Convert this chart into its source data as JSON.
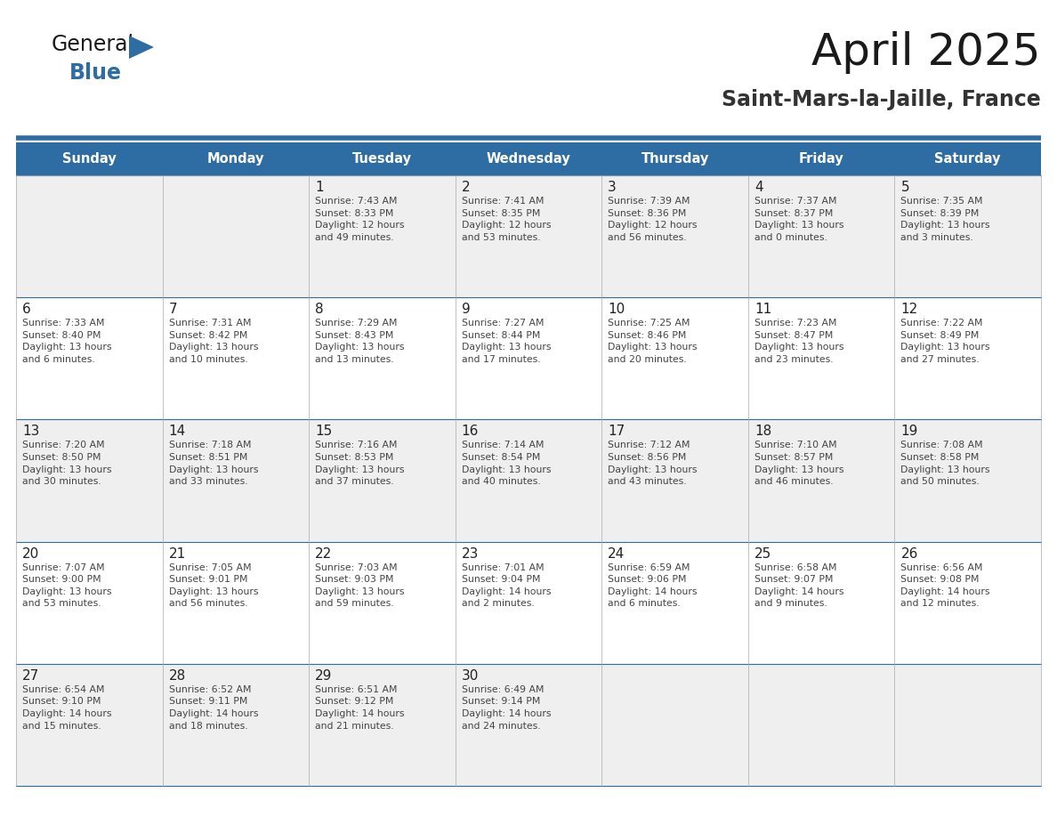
{
  "title": "April 2025",
  "subtitle": "Saint-Mars-la-Jaille, France",
  "header_bg": "#2E6DA4",
  "header_text": "#FFFFFF",
  "row_bg_even": "#EFEFEF",
  "row_bg_odd": "#FFFFFF",
  "cell_text": "#333333",
  "grid_line_color": "#2E6DA4",
  "days_of_week": [
    "Sunday",
    "Monday",
    "Tuesday",
    "Wednesday",
    "Thursday",
    "Friday",
    "Saturday"
  ],
  "weeks": [
    [
      {
        "day": "",
        "info": ""
      },
      {
        "day": "",
        "info": ""
      },
      {
        "day": "1",
        "info": "Sunrise: 7:43 AM\nSunset: 8:33 PM\nDaylight: 12 hours\nand 49 minutes."
      },
      {
        "day": "2",
        "info": "Sunrise: 7:41 AM\nSunset: 8:35 PM\nDaylight: 12 hours\nand 53 minutes."
      },
      {
        "day": "3",
        "info": "Sunrise: 7:39 AM\nSunset: 8:36 PM\nDaylight: 12 hours\nand 56 minutes."
      },
      {
        "day": "4",
        "info": "Sunrise: 7:37 AM\nSunset: 8:37 PM\nDaylight: 13 hours\nand 0 minutes."
      },
      {
        "day": "5",
        "info": "Sunrise: 7:35 AM\nSunset: 8:39 PM\nDaylight: 13 hours\nand 3 minutes."
      }
    ],
    [
      {
        "day": "6",
        "info": "Sunrise: 7:33 AM\nSunset: 8:40 PM\nDaylight: 13 hours\nand 6 minutes."
      },
      {
        "day": "7",
        "info": "Sunrise: 7:31 AM\nSunset: 8:42 PM\nDaylight: 13 hours\nand 10 minutes."
      },
      {
        "day": "8",
        "info": "Sunrise: 7:29 AM\nSunset: 8:43 PM\nDaylight: 13 hours\nand 13 minutes."
      },
      {
        "day": "9",
        "info": "Sunrise: 7:27 AM\nSunset: 8:44 PM\nDaylight: 13 hours\nand 17 minutes."
      },
      {
        "day": "10",
        "info": "Sunrise: 7:25 AM\nSunset: 8:46 PM\nDaylight: 13 hours\nand 20 minutes."
      },
      {
        "day": "11",
        "info": "Sunrise: 7:23 AM\nSunset: 8:47 PM\nDaylight: 13 hours\nand 23 minutes."
      },
      {
        "day": "12",
        "info": "Sunrise: 7:22 AM\nSunset: 8:49 PM\nDaylight: 13 hours\nand 27 minutes."
      }
    ],
    [
      {
        "day": "13",
        "info": "Sunrise: 7:20 AM\nSunset: 8:50 PM\nDaylight: 13 hours\nand 30 minutes."
      },
      {
        "day": "14",
        "info": "Sunrise: 7:18 AM\nSunset: 8:51 PM\nDaylight: 13 hours\nand 33 minutes."
      },
      {
        "day": "15",
        "info": "Sunrise: 7:16 AM\nSunset: 8:53 PM\nDaylight: 13 hours\nand 37 minutes."
      },
      {
        "day": "16",
        "info": "Sunrise: 7:14 AM\nSunset: 8:54 PM\nDaylight: 13 hours\nand 40 minutes."
      },
      {
        "day": "17",
        "info": "Sunrise: 7:12 AM\nSunset: 8:56 PM\nDaylight: 13 hours\nand 43 minutes."
      },
      {
        "day": "18",
        "info": "Sunrise: 7:10 AM\nSunset: 8:57 PM\nDaylight: 13 hours\nand 46 minutes."
      },
      {
        "day": "19",
        "info": "Sunrise: 7:08 AM\nSunset: 8:58 PM\nDaylight: 13 hours\nand 50 minutes."
      }
    ],
    [
      {
        "day": "20",
        "info": "Sunrise: 7:07 AM\nSunset: 9:00 PM\nDaylight: 13 hours\nand 53 minutes."
      },
      {
        "day": "21",
        "info": "Sunrise: 7:05 AM\nSunset: 9:01 PM\nDaylight: 13 hours\nand 56 minutes."
      },
      {
        "day": "22",
        "info": "Sunrise: 7:03 AM\nSunset: 9:03 PM\nDaylight: 13 hours\nand 59 minutes."
      },
      {
        "day": "23",
        "info": "Sunrise: 7:01 AM\nSunset: 9:04 PM\nDaylight: 14 hours\nand 2 minutes."
      },
      {
        "day": "24",
        "info": "Sunrise: 6:59 AM\nSunset: 9:06 PM\nDaylight: 14 hours\nand 6 minutes."
      },
      {
        "day": "25",
        "info": "Sunrise: 6:58 AM\nSunset: 9:07 PM\nDaylight: 14 hours\nand 9 minutes."
      },
      {
        "day": "26",
        "info": "Sunrise: 6:56 AM\nSunset: 9:08 PM\nDaylight: 14 hours\nand 12 minutes."
      }
    ],
    [
      {
        "day": "27",
        "info": "Sunrise: 6:54 AM\nSunset: 9:10 PM\nDaylight: 14 hours\nand 15 minutes."
      },
      {
        "day": "28",
        "info": "Sunrise: 6:52 AM\nSunset: 9:11 PM\nDaylight: 14 hours\nand 18 minutes."
      },
      {
        "day": "29",
        "info": "Sunrise: 6:51 AM\nSunset: 9:12 PM\nDaylight: 14 hours\nand 21 minutes."
      },
      {
        "day": "30",
        "info": "Sunrise: 6:49 AM\nSunset: 9:14 PM\nDaylight: 14 hours\nand 24 minutes."
      },
      {
        "day": "",
        "info": ""
      },
      {
        "day": "",
        "info": ""
      },
      {
        "day": "",
        "info": ""
      }
    ]
  ],
  "logo_general_color": "#1a1a1a",
  "logo_blue_color": "#2E6DA4",
  "logo_triangle_color": "#2E6DA4",
  "title_color": "#1a1a1a",
  "subtitle_color": "#333333"
}
